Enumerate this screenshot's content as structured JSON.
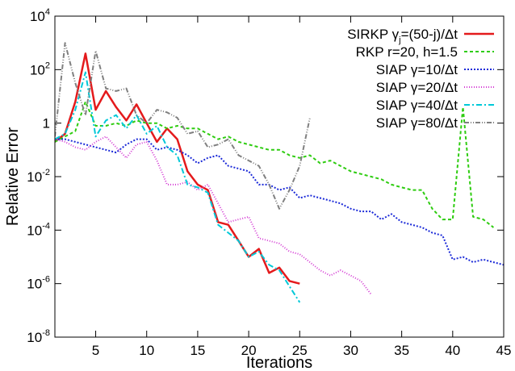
{
  "chart_data": {
    "type": "line",
    "xlabel": "Iterations",
    "ylabel": "Relative Error",
    "xlim": [
      1,
      45
    ],
    "ylim_log10": [
      -8,
      4
    ],
    "yscale": "log",
    "x_ticks": [
      "5",
      "10",
      "15",
      "20",
      "25",
      "30",
      "35",
      "40",
      "45"
    ],
    "y_ticks": [
      {
        "base": "10",
        "exp": "-8"
      },
      {
        "base": "10",
        "exp": "-6"
      },
      {
        "base": "10",
        "exp": "-4"
      },
      {
        "base": "10",
        "exp": "-2"
      },
      {
        "base": "1",
        "exp": ""
      },
      {
        "base": "10",
        "exp": "2"
      },
      {
        "base": "10",
        "exp": "4"
      }
    ],
    "legend_position": "top-right",
    "series": [
      {
        "name": "SIRKP γj=(50-j)/Δt",
        "legend_parts": {
          "pre": "SIRKP γ",
          "sub": "j",
          "post": "=(50-j)/Δt"
        },
        "color": "#e41a1c",
        "dash": "",
        "width": 2.5,
        "x": [
          1,
          2,
          3,
          4,
          5,
          6,
          7,
          8,
          9,
          10,
          11,
          12,
          13,
          14,
          15,
          16,
          17,
          18,
          19,
          20,
          21,
          22,
          23,
          24,
          25
        ],
        "log10_y": [
          -0.7,
          -0.4,
          0.8,
          2.6,
          0.5,
          1.2,
          0.6,
          0.1,
          0.7,
          0.0,
          -0.7,
          -0.2,
          -0.6,
          -1.8,
          -2.3,
          -2.5,
          -3.7,
          -3.8,
          -4.4,
          -5.0,
          -4.7,
          -5.6,
          -5.4,
          -5.9,
          -6.0
        ]
      },
      {
        "name": "RKP r=20, h=1.5",
        "color": "#2ecc10",
        "dash": "4,3",
        "width": 2,
        "x": [
          1,
          2,
          3,
          4,
          5,
          6,
          7,
          8,
          9,
          10,
          11,
          12,
          13,
          14,
          15,
          16,
          17,
          18,
          19,
          20,
          21,
          22,
          23,
          24,
          25,
          26,
          27,
          28,
          29,
          30,
          31,
          32,
          33,
          34,
          35,
          36,
          37,
          38,
          39,
          40,
          41,
          42,
          43,
          44
        ],
        "log10_y": [
          -0.7,
          -0.5,
          -0.3,
          0.8,
          -0.1,
          -0.1,
          0.0,
          -0.1,
          0.1,
          0.0,
          0.0,
          -0.2,
          -0.1,
          -0.2,
          -0.2,
          -0.4,
          -0.6,
          -0.5,
          -0.7,
          -0.8,
          -0.9,
          -1.0,
          -1.0,
          -1.2,
          -1.3,
          -1.2,
          -1.5,
          -1.4,
          -1.6,
          -1.8,
          -1.9,
          -2.0,
          -2.1,
          -2.3,
          -2.4,
          -2.5,
          -2.5,
          -3.2,
          -3.6,
          -3.6,
          0.6,
          -3.5,
          -3.6,
          -3.9
        ]
      },
      {
        "name": "SIAP γ=10/Δt",
        "color": "#1c2bd8",
        "dash": "2,2",
        "width": 2,
        "x": [
          1,
          2,
          3,
          4,
          5,
          6,
          7,
          8,
          9,
          10,
          11,
          12,
          13,
          14,
          15,
          16,
          17,
          18,
          19,
          20,
          21,
          22,
          23,
          24,
          25,
          26,
          27,
          28,
          29,
          30,
          31,
          32,
          33,
          34,
          35,
          36,
          37,
          38,
          39,
          40,
          41,
          42,
          43,
          44,
          45
        ],
        "log10_y": [
          -0.6,
          -0.6,
          -0.7,
          -0.8,
          -0.9,
          -1.0,
          -1.1,
          -0.8,
          -0.6,
          -0.6,
          -1.0,
          -0.9,
          -1.0,
          -1.2,
          -1.5,
          -1.3,
          -1.2,
          -1.6,
          -1.7,
          -1.8,
          -2.3,
          -2.3,
          -2.5,
          -2.4,
          -2.8,
          -2.7,
          -2.8,
          -2.9,
          -3.0,
          -3.2,
          -3.3,
          -3.3,
          -3.6,
          -3.4,
          -3.7,
          -3.8,
          -3.9,
          -4.1,
          -4.2,
          -5.1,
          -5.0,
          -5.2,
          -5.1,
          -5.2,
          -5.3
        ]
      },
      {
        "name": "SIAP γ=20/Δt",
        "color": "#d43ad4",
        "dash": "1,2",
        "width": 2,
        "x": [
          1,
          2,
          3,
          4,
          5,
          6,
          7,
          8,
          9,
          10,
          11,
          12,
          13,
          14,
          15,
          16,
          17,
          18,
          19,
          20,
          21,
          22,
          23,
          24,
          25,
          26,
          27,
          28,
          29,
          30,
          31,
          32
        ],
        "log10_y": [
          -0.6,
          -0.7,
          -0.9,
          -1.0,
          -0.7,
          -0.5,
          -0.9,
          -1.3,
          -0.8,
          -0.7,
          -1.4,
          -2.3,
          -2.3,
          -2.2,
          -2.5,
          -2.3,
          -3.0,
          -3.7,
          -3.6,
          -3.5,
          -4.3,
          -4.4,
          -4.5,
          -4.8,
          -4.9,
          -5.2,
          -5.5,
          -5.7,
          -5.5,
          -5.7,
          -5.9,
          -6.4
        ]
      },
      {
        "name": "SIAP γ=40/Δt",
        "color": "#00c8d8",
        "dash": "7,3,2,3",
        "width": 2,
        "x": [
          1,
          2,
          3,
          4,
          5,
          6,
          7,
          8,
          9,
          10,
          11,
          12,
          13,
          14,
          15,
          16,
          17,
          18,
          19,
          20,
          21,
          22,
          23,
          24,
          25
        ],
        "log10_y": [
          -0.6,
          -0.4,
          0.5,
          1.9,
          -0.5,
          0.1,
          0.3,
          -0.2,
          0.3,
          -0.4,
          -0.1,
          -0.9,
          -1.2,
          -2.3,
          -2.4,
          -2.6,
          -3.8,
          -4.1,
          -4.4,
          -5.0,
          -4.8,
          -5.3,
          -5.5,
          -6.1,
          -6.7
        ]
      },
      {
        "name": "SIAP γ=80/Δt",
        "color": "#808080",
        "dash": "6,2,1,2,1,2",
        "width": 2,
        "x": [
          1,
          2,
          3,
          4,
          5,
          6,
          7,
          8,
          9,
          10,
          11,
          12,
          13,
          14,
          15,
          16,
          17,
          18,
          19,
          20,
          21,
          22,
          23,
          24,
          25,
          26
        ],
        "log10_y": [
          -0.5,
          3.0,
          1.5,
          0.3,
          2.7,
          1.3,
          1.2,
          1.3,
          0.3,
          0.0,
          0.5,
          0.4,
          0.2,
          -0.4,
          -0.3,
          -0.9,
          -0.8,
          -0.6,
          -1.2,
          -1.4,
          -1.6,
          -2.3,
          -3.2,
          -2.5,
          -1.6,
          0.2
        ]
      }
    ]
  }
}
